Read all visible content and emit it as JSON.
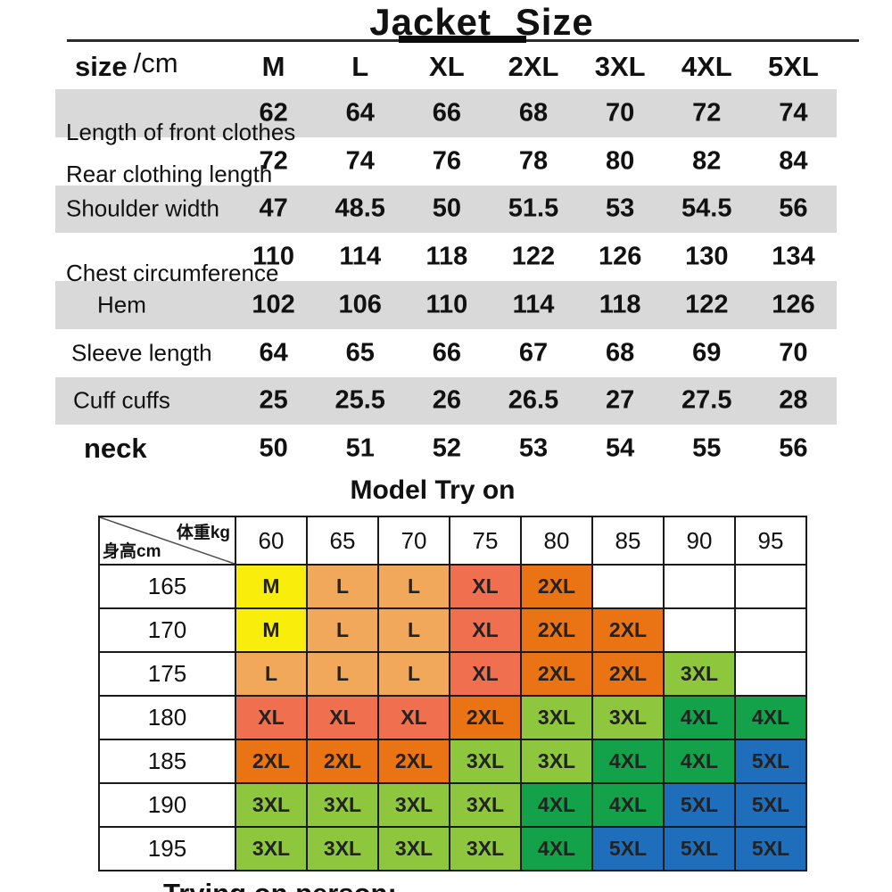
{
  "page_title": "Jacket Size",
  "size_header": {
    "label": "size",
    "unit": "/cm"
  },
  "tryon_heading": "Model Try on",
  "corner": {
    "top": "体重kg",
    "bottom": "身高cm"
  },
  "footer_clipped": "Trying on person:",
  "colors": {
    "row_shade": "#d9d9d9",
    "border": "#1a1a1a",
    "text": "#111111"
  },
  "chart_data": [
    {
      "type": "table",
      "title": "Jacket Size",
      "unit": "cm",
      "columns": [
        "size /cm",
        "M",
        "L",
        "XL",
        "2XL",
        "3XL",
        "4XL",
        "5XL"
      ],
      "rows": [
        [
          "Length of front clothes",
          "62",
          "64",
          "66",
          "68",
          "70",
          "72",
          "74"
        ],
        [
          "Rear clothing length",
          "72",
          "74",
          "76",
          "78",
          "80",
          "82",
          "84"
        ],
        [
          "Shoulder width",
          "47",
          "48.5",
          "50",
          "51.5",
          "53",
          "54.5",
          "56"
        ],
        [
          "Chest circumference",
          "110",
          "114",
          "118",
          "122",
          "126",
          "130",
          "134"
        ],
        [
          "Hem",
          "102",
          "106",
          "110",
          "114",
          "118",
          "122",
          "126"
        ],
        [
          "Sleeve length",
          "64",
          "65",
          "66",
          "67",
          "68",
          "69",
          "70"
        ],
        [
          "Cuff cuffs",
          "25",
          "25.5",
          "26",
          "26.5",
          "27",
          "27.5",
          "28"
        ],
        [
          "neck",
          "50",
          "51",
          "52",
          "53",
          "54",
          "55",
          "56"
        ]
      ]
    },
    {
      "type": "table",
      "title": "Model Try on",
      "x_axis_label": "体重kg",
      "y_axis_label": "身高cm",
      "columns": [
        "60",
        "65",
        "70",
        "75",
        "80",
        "85",
        "90",
        "95"
      ],
      "row_labels": [
        "165",
        "170",
        "175",
        "180",
        "185",
        "190",
        "195"
      ],
      "cells": [
        [
          "M",
          "L",
          "L",
          "XL",
          "2XL",
          "",
          "",
          ""
        ],
        [
          "M",
          "L",
          "L",
          "XL",
          "2XL",
          "2XL",
          "",
          ""
        ],
        [
          "L",
          "L",
          "L",
          "XL",
          "2XL",
          "2XL",
          "3XL",
          ""
        ],
        [
          "XL",
          "XL",
          "XL",
          "2XL",
          "3XL",
          "3XL",
          "4XL",
          "4XL"
        ],
        [
          "2XL",
          "2XL",
          "2XL",
          "3XL",
          "3XL",
          "4XL",
          "4XL",
          "5XL"
        ],
        [
          "3XL",
          "3XL",
          "3XL",
          "3XL",
          "4XL",
          "4XL",
          "5XL",
          "5XL"
        ],
        [
          "3XL",
          "3XL",
          "3XL",
          "3XL",
          "4XL",
          "5XL",
          "5XL",
          "5XL"
        ]
      ],
      "cell_colors": {
        "M": "#f8ed0b",
        "L": "#f1a85b",
        "XL": "#ef6f4f",
        "2XL": "#ea7413",
        "3XL": "#8ec63d",
        "4XL": "#13a24a",
        "5XL": "#1f6ebc"
      }
    }
  ]
}
